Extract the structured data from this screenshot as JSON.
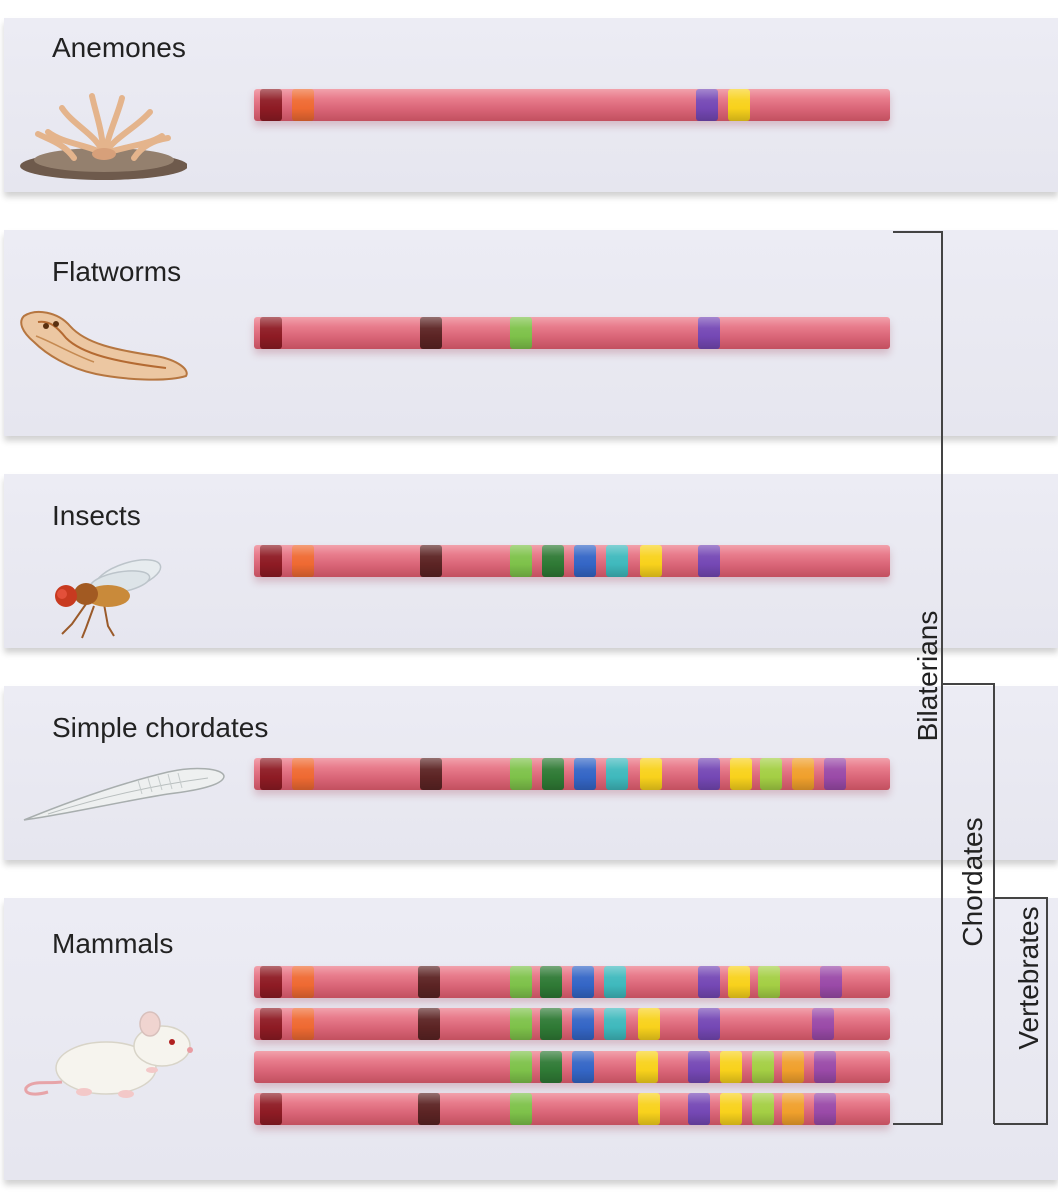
{
  "colors": {
    "dark-red": "#8e1b24",
    "orange": "#ef6a32",
    "brown": "#5c2424",
    "light-green": "#7ec24a",
    "dark-green": "#2f7a35",
    "blue": "#3466c6",
    "teal": "#3fb9bd",
    "yellow": "#f8d21c",
    "purple": "#7548b5",
    "lime": "#a4cf44",
    "amber": "#f0a02c",
    "magenta": "#9a4aa8"
  },
  "panels": [
    {
      "label": "Anemones",
      "icon": "anemone-icon",
      "chromosomes": [
        [
          "dark-red",
          "orange",
          "purple",
          "yellow"
        ]
      ]
    },
    {
      "label": "Flatworms",
      "icon": "flatworm-icon",
      "chromosomes": [
        [
          "dark-red",
          "brown",
          "light-green",
          "purple"
        ]
      ]
    },
    {
      "label": "Insects",
      "icon": "fly-icon",
      "chromosomes": [
        [
          "dark-red",
          "orange",
          "brown",
          "light-green",
          "dark-green",
          "blue",
          "teal",
          "yellow",
          "purple"
        ]
      ]
    },
    {
      "label": "Simple chordates",
      "icon": "lancelet-icon",
      "chromosomes": [
        [
          "dark-red",
          "orange",
          "brown",
          "light-green",
          "dark-green",
          "blue",
          "teal",
          "yellow",
          "purple",
          "yellow",
          "lime",
          "amber",
          "magenta"
        ]
      ]
    },
    {
      "label": "Mammals",
      "icon": "mouse-icon",
      "chromosomes": [
        [
          "dark-red",
          "orange",
          "brown",
          "light-green",
          "dark-green",
          "blue",
          "teal",
          "purple",
          "yellow",
          "lime",
          "magenta"
        ],
        [
          "dark-red",
          "orange",
          "brown",
          "light-green",
          "dark-green",
          "blue",
          "teal",
          "yellow",
          "purple",
          "magenta"
        ],
        [
          "light-green",
          "dark-green",
          "blue",
          "yellow",
          "purple",
          "yellow",
          "lime",
          "amber",
          "magenta"
        ],
        [
          "dark-red",
          "brown",
          "light-green",
          "yellow",
          "purple",
          "yellow",
          "lime",
          "amber",
          "magenta"
        ]
      ]
    }
  ],
  "brackets": {
    "bilaterians": "Bilaterians",
    "chordates": "Chordates",
    "vertebrates": "Vertebrates"
  }
}
